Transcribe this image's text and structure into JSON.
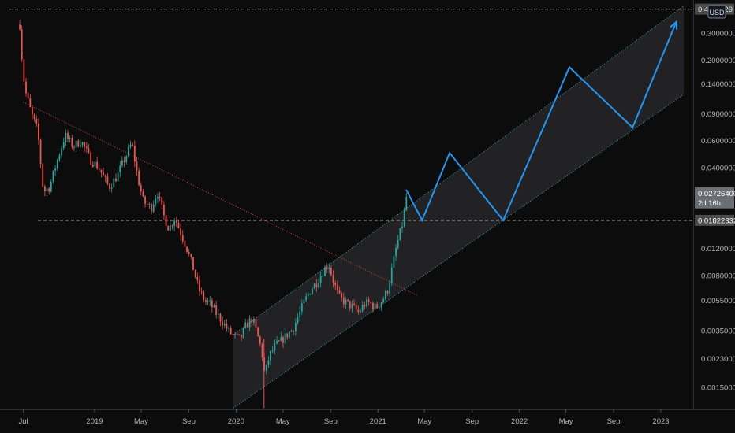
{
  "chart_data": {
    "type": "candlestick",
    "scale": "log",
    "currency_badge": "USD",
    "y_ticks": [
      "0.30000000",
      "0.20000000",
      "0.14000000",
      "0.09000000",
      "0.06000000",
      "0.04000000",
      "0.01200000",
      "0.00800000",
      "0.00550000",
      "0.00350000",
      "0.00230000",
      "0.00150000"
    ],
    "price_labels": [
      {
        "text": "0.4",
        "tail": "029",
        "kind": "top-line"
      },
      {
        "text": "0.02726400",
        "sub": "2d 16h",
        "kind": "last-price"
      },
      {
        "text": "0.01822332",
        "kind": "level-line"
      }
    ],
    "x_ticks": [
      {
        "label": "Jul",
        "date": "2018-07"
      },
      {
        "label": "2019",
        "date": "2019-01"
      },
      {
        "label": "May",
        "date": "2019-05"
      },
      {
        "label": "Sep",
        "date": "2019-09"
      },
      {
        "label": "2020",
        "date": "2020-01"
      },
      {
        "label": "May",
        "date": "2020-05"
      },
      {
        "label": "Sep",
        "date": "2020-09"
      },
      {
        "label": "2021",
        "date": "2021-01"
      },
      {
        "label": "May",
        "date": "2021-05"
      },
      {
        "label": "Sep",
        "date": "2021-09"
      },
      {
        "label": "2022",
        "date": "2022-01"
      },
      {
        "label": "May",
        "date": "2022-05"
      },
      {
        "label": "Sep",
        "date": "2022-09"
      },
      {
        "label": "2023",
        "date": "2023-01"
      }
    ],
    "price_path": [
      [
        "2018-06-20",
        0.34
      ],
      [
        "2018-06-26",
        0.2
      ],
      [
        "2018-07-03",
        0.13
      ],
      [
        "2018-07-20",
        0.09
      ],
      [
        "2018-08-05",
        0.07
      ],
      [
        "2018-08-20",
        0.028
      ],
      [
        "2018-09-05",
        0.03
      ],
      [
        "2018-09-25",
        0.045
      ],
      [
        "2018-10-15",
        0.065
      ],
      [
        "2018-11-05",
        0.055
      ],
      [
        "2018-11-25",
        0.06
      ],
      [
        "2018-12-20",
        0.045
      ],
      [
        "2019-01-10",
        0.04
      ],
      [
        "2019-02-05",
        0.03
      ],
      [
        "2019-02-25",
        0.035
      ],
      [
        "2019-03-20",
        0.047
      ],
      [
        "2019-04-05",
        0.058
      ],
      [
        "2019-04-20",
        0.035
      ],
      [
        "2019-05-05",
        0.024
      ],
      [
        "2019-05-25",
        0.022
      ],
      [
        "2019-06-10",
        0.028
      ],
      [
        "2019-06-25",
        0.02
      ],
      [
        "2019-07-10",
        0.016
      ],
      [
        "2019-07-25",
        0.019
      ],
      [
        "2019-08-10",
        0.015
      ],
      [
        "2019-08-25",
        0.012
      ],
      [
        "2019-09-10",
        0.009
      ],
      [
        "2019-09-25",
        0.0065
      ],
      [
        "2019-10-10",
        0.0055
      ],
      [
        "2019-10-25",
        0.0052
      ],
      [
        "2019-11-10",
        0.0045
      ],
      [
        "2019-11-25",
        0.004
      ],
      [
        "2019-12-10",
        0.0035
      ],
      [
        "2019-12-25",
        0.0032
      ],
      [
        "2020-01-10",
        0.0031
      ],
      [
        "2020-01-25",
        0.0038
      ],
      [
        "2020-02-10",
        0.0042
      ],
      [
        "2020-02-20",
        0.0035
      ],
      [
        "2020-03-05",
        0.0026
      ],
      [
        "2020-03-13",
        0.0018
      ],
      [
        "2020-03-25",
        0.0024
      ],
      [
        "2020-04-10",
        0.0028
      ],
      [
        "2020-04-25",
        0.003
      ],
      [
        "2020-05-10",
        0.0033
      ],
      [
        "2020-05-25",
        0.0036
      ],
      [
        "2020-06-10",
        0.0045
      ],
      [
        "2020-06-25",
        0.0055
      ],
      [
        "2020-07-10",
        0.0065
      ],
      [
        "2020-07-25",
        0.0072
      ],
      [
        "2020-08-10",
        0.0085
      ],
      [
        "2020-08-25",
        0.0095
      ],
      [
        "2020-09-05",
        0.0075
      ],
      [
        "2020-09-20",
        0.0058
      ],
      [
        "2020-10-05",
        0.0054
      ],
      [
        "2020-10-25",
        0.005
      ],
      [
        "2020-11-10",
        0.0046
      ],
      [
        "2020-11-25",
        0.0052
      ],
      [
        "2020-12-10",
        0.0053
      ],
      [
        "2020-12-25",
        0.0049
      ],
      [
        "2021-01-10",
        0.0055
      ],
      [
        "2021-01-25",
        0.0065
      ],
      [
        "2021-02-05",
        0.009
      ],
      [
        "2021-02-15",
        0.012
      ],
      [
        "2021-02-25",
        0.015
      ],
      [
        "2021-03-05",
        0.018
      ],
      [
        "2021-03-15",
        0.027264
      ]
    ],
    "projection": [
      [
        "2021-03-15",
        0.0288
      ],
      [
        "2021-04-25",
        0.01822
      ],
      [
        "2021-07-05",
        0.05
      ],
      [
        "2021-11-20",
        0.01822
      ],
      [
        "2022-05-10",
        0.18
      ],
      [
        "2022-10-20",
        0.073
      ],
      [
        "2023-02-10",
        0.355
      ]
    ],
    "channel": {
      "lower_start": [
        "2019-12-25",
        0.0011
      ],
      "lower_end": [
        "2023-03-01",
        0.12
      ],
      "upper_start": [
        "2019-12-25",
        0.0033
      ],
      "upper_end": [
        "2023-03-01",
        0.45
      ]
    },
    "downtrend_line": [
      [
        "2018-07-01",
        0.107
      ],
      [
        "2021-04-15",
        0.0059
      ]
    ],
    "level_line": 0.01822332,
    "top_line": 0.429
  }
}
